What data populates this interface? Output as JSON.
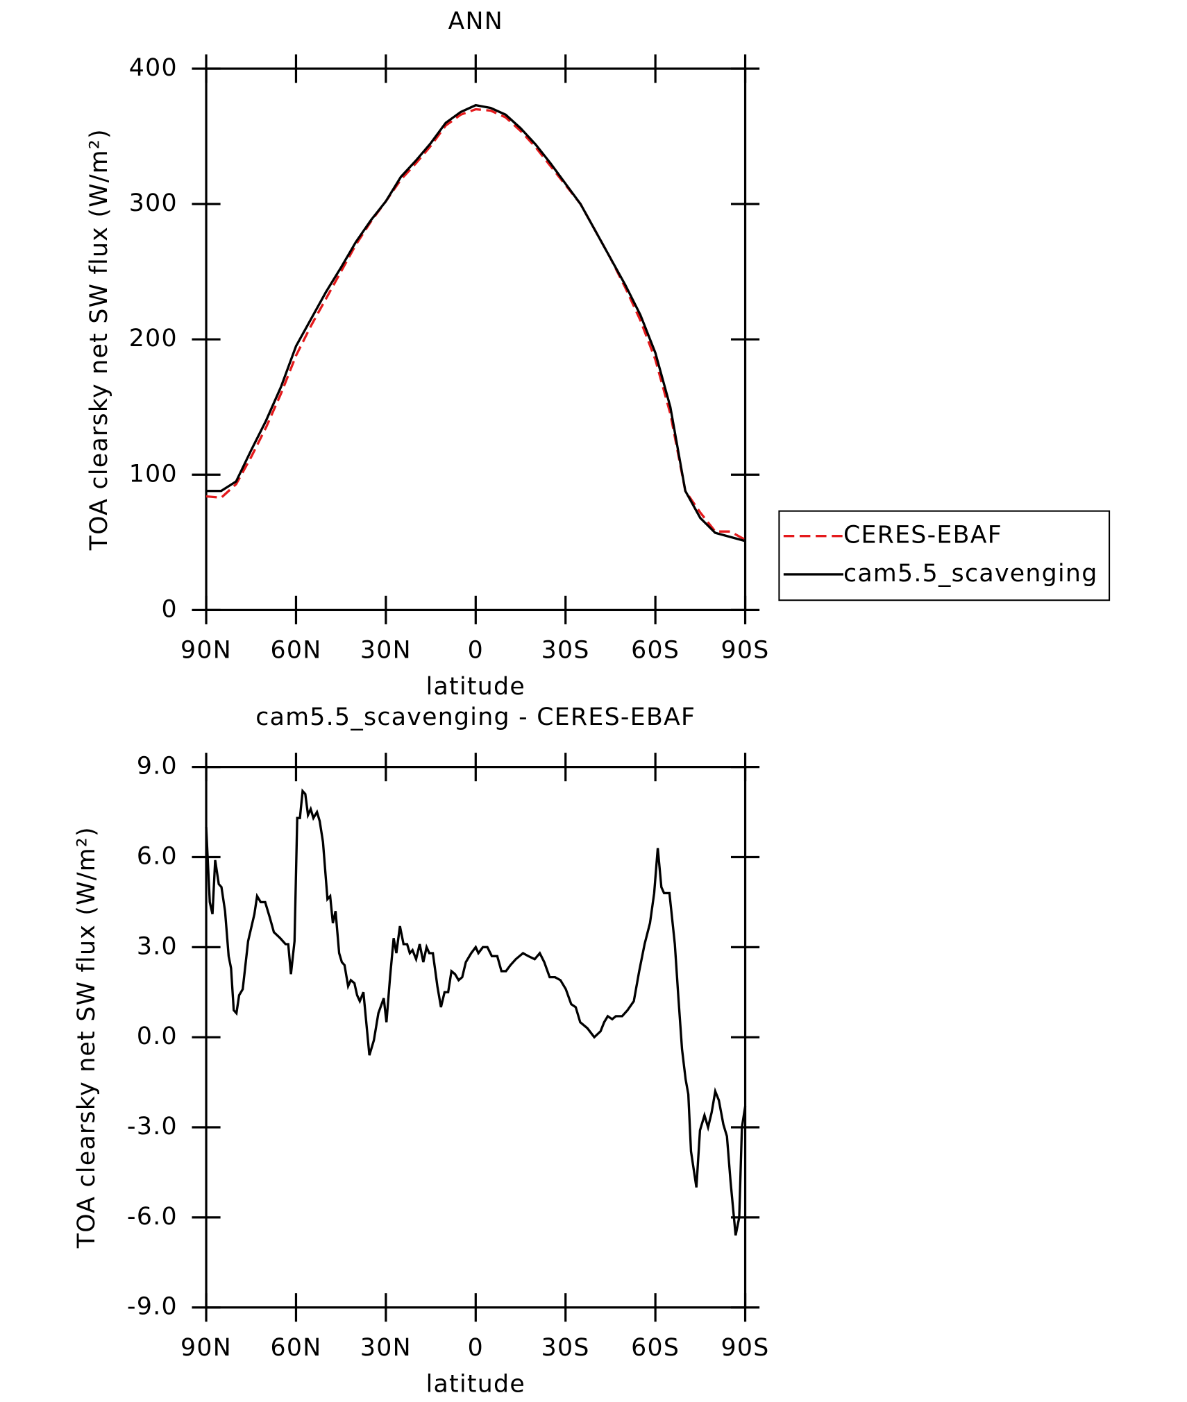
{
  "chart_data": [
    {
      "type": "line",
      "title": "ANN",
      "x_label": "latitude",
      "y_label": "TOA clearsky net SW flux (W/m²)",
      "x": [
        90,
        85,
        80,
        75,
        70,
        65,
        60,
        55,
        50,
        45,
        40,
        35,
        30,
        25,
        20,
        15,
        10,
        5,
        0,
        -5,
        -10,
        -15,
        -20,
        -25,
        -30,
        -35,
        -40,
        -45,
        -50,
        -55,
        -60,
        -65,
        -70,
        -75,
        -80,
        -85,
        -90
      ],
      "series": [
        {
          "name": "CERES-EBAF",
          "color": "#e41a1c",
          "line_style": "dashed",
          "values": [
            84,
            83,
            93,
            113,
            135,
            160,
            188,
            210,
            230,
            250,
            270,
            287,
            302,
            318,
            330,
            343,
            358,
            366,
            370,
            369,
            364,
            354,
            342,
            328,
            314,
            300,
            280,
            260,
            238,
            214,
            185,
            145,
            88,
            72,
            58,
            58,
            52
          ]
        },
        {
          "name": "cam5.5_scavenging",
          "color": "#000000",
          "line_style": "solid",
          "values": [
            88,
            88,
            95,
            118,
            140,
            165,
            195,
            215,
            235,
            253,
            272,
            288,
            302,
            320,
            332,
            345,
            360,
            368,
            373,
            371,
            366,
            356,
            344,
            330,
            315,
            300,
            280,
            260,
            240,
            218,
            190,
            150,
            88,
            68,
            57,
            54,
            51
          ]
        }
      ],
      "xlim": [
        90,
        -90
      ],
      "xticks": [
        {
          "value": 90,
          "label": "90N"
        },
        {
          "value": 60,
          "label": "60N"
        },
        {
          "value": 30,
          "label": "30N"
        },
        0,
        {
          "value": -30,
          "label": "30S"
        },
        {
          "value": -60,
          "label": "60S"
        },
        {
          "value": -90,
          "label": "90S"
        }
      ],
      "ylim": [
        0,
        400
      ],
      "yticks": [
        0,
        100,
        200,
        300,
        400
      ],
      "legend": "right"
    },
    {
      "type": "line",
      "title": "cam5.5_scavenging - CERES-EBAF",
      "x_label": "latitude",
      "y_label": "TOA clearsky net SW flux (W/m²)",
      "x": [
        90,
        88.8,
        87.9,
        87,
        85.8,
        84.9,
        83.7,
        82.5,
        81.7,
        80.8,
        79.9,
        79,
        77.8,
        76,
        73.9,
        73,
        71.8,
        70.3,
        68.8,
        67.4,
        65.3,
        63.5,
        62.6,
        61.7,
        60.5,
        59.6,
        58.7,
        57.8,
        56.9,
        56,
        55.1,
        54.2,
        53,
        52.1,
        51,
        49.5,
        48.6,
        47.7,
        46.8,
        45.6,
        44.7,
        43.8,
        42.6,
        41.7,
        40.5,
        39.6,
        38.7,
        37.5,
        35.5,
        34,
        32.5,
        30.7,
        29.8,
        28.6,
        27.4,
        26.5,
        25.3,
        24.1,
        22.9,
        22,
        21.1,
        19.9,
        18.7,
        17.5,
        16.4,
        15.5,
        14.3,
        12.8,
        11.6,
        10.4,
        9.2,
        8.1,
        6.9,
        5.7,
        4.5,
        3.3,
        1.5,
        0,
        -0.9,
        -2.4,
        -3.9,
        -5.4,
        -7.2,
        -8.6,
        -10.1,
        -11.6,
        -13.4,
        -15.8,
        -17.6,
        -19.7,
        -21.4,
        -22.9,
        -24.7,
        -26.5,
        -28.3,
        -30.1,
        -31.9,
        -33.4,
        -34.9,
        -37.3,
        -39.6,
        -41.7,
        -42.9,
        -44.1,
        -45.6,
        -46.8,
        -48.9,
        -50.7,
        -52.8,
        -54.6,
        -56.4,
        -58.2,
        -59.6,
        -60.8,
        -62,
        -62.9,
        -64.1,
        -64.7,
        -66.5,
        -67.7,
        -68.9,
        -70.1,
        -71,
        -71.9,
        -73.7,
        -74.9,
        -76.4,
        -77.6,
        -78.8,
        -80,
        -81.2,
        -82.7,
        -83.9,
        -85.1,
        -86.8,
        -88,
        -88.9,
        -90
      ],
      "series": [
        {
          "color": "#000000",
          "line_style": "solid",
          "values": [
            7.0,
            4.5,
            4.1,
            5.9,
            5.1,
            5.0,
            4.2,
            2.7,
            2.3,
            0.9,
            0.8,
            1.4,
            1.6,
            3.2,
            4.1,
            4.7,
            4.5,
            4.5,
            4.0,
            3.5,
            3.3,
            3.1,
            3.1,
            2.1,
            3.2,
            7.3,
            7.3,
            8.2,
            8.1,
            7.4,
            7.6,
            7.3,
            7.5,
            7.2,
            6.5,
            4.6,
            4.7,
            3.8,
            4.2,
            2.8,
            2.5,
            2.4,
            1.7,
            1.9,
            1.8,
            1.4,
            1.2,
            1.5,
            -0.6,
            -0.1,
            0.8,
            1.3,
            0.5,
            2.0,
            3.3,
            2.8,
            3.7,
            3.1,
            3.1,
            2.8,
            2.9,
            2.6,
            3.1,
            2.5,
            3.0,
            2.8,
            2.8,
            1.7,
            1.0,
            1.5,
            1.5,
            2.2,
            2.1,
            1.9,
            2.0,
            2.5,
            2.8,
            3.0,
            2.8,
            3.0,
            3.0,
            2.7,
            2.7,
            2.2,
            2.2,
            2.4,
            2.6,
            2.8,
            2.7,
            2.6,
            2.8,
            2.5,
            2.0,
            2.0,
            1.9,
            1.6,
            1.1,
            1.0,
            0.5,
            0.3,
            0.0,
            0.2,
            0.5,
            0.7,
            0.6,
            0.7,
            0.7,
            0.9,
            1.2,
            2.2,
            3.1,
            3.8,
            4.8,
            6.3,
            5.0,
            4.8,
            4.8,
            4.8,
            3.1,
            1.3,
            -0.4,
            -1.4,
            -1.9,
            -3.8,
            -5.0,
            -3.1,
            -2.6,
            -3.0,
            -2.5,
            -1.8,
            -2.1,
            -2.9,
            -3.3,
            -4.8,
            -6.6,
            -6.0,
            -3.0,
            -2.3
          ]
        }
      ],
      "xlim": [
        90,
        -90
      ],
      "xticks": [
        {
          "value": 90,
          "label": "90N"
        },
        {
          "value": 60,
          "label": "60N"
        },
        {
          "value": 30,
          "label": "30N"
        },
        0,
        {
          "value": -30,
          "label": "30S"
        },
        {
          "value": -60,
          "label": "60S"
        },
        {
          "value": -90,
          "label": "90S"
        }
      ],
      "ylim": [
        -9,
        9
      ],
      "yticks": [
        {
          "value": -9,
          "label": "-9.0"
        },
        {
          "value": -6,
          "label": "-6.0"
        },
        {
          "value": -3,
          "label": "-3.0"
        },
        {
          "value": 0,
          "label": "0.0"
        },
        {
          "value": 3,
          "label": "3.0"
        },
        {
          "value": 6,
          "label": "6.0"
        },
        {
          "value": 9,
          "label": "9.0"
        }
      ]
    }
  ]
}
